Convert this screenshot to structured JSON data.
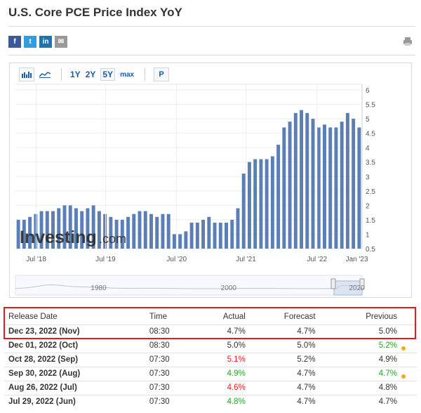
{
  "page_title": "U.S. Core PCE Price Index YoY",
  "share_icons": [
    {
      "name": "facebook-icon",
      "glyph": "f",
      "color": "#3b5998"
    },
    {
      "name": "twitter-icon",
      "glyph": "t",
      "color": "#2e9ee0"
    },
    {
      "name": "linkedin-icon",
      "glyph": "in",
      "color": "#1f73b1"
    },
    {
      "name": "email-icon",
      "glyph": "✉",
      "color": "#999999"
    }
  ],
  "toolbar": {
    "range_1y": "1Y",
    "range_2y": "2Y",
    "range_5y": "5Y",
    "range_max": "max",
    "p_label": "P"
  },
  "chart_data": {
    "type": "bar",
    "watermark": "Investing.com",
    "color": "#5b7fb4",
    "x_ticks": [
      "Jul '18",
      "Jul '19",
      "Jul '20",
      "Jul '21",
      "Jul '22",
      "Jan '23"
    ],
    "y_ticks": [
      0.5,
      1,
      1.5,
      2,
      2.5,
      3,
      3.5,
      4,
      4.5,
      5,
      5.5,
      6
    ],
    "ylim": [
      0.5,
      6
    ],
    "grid": true,
    "values": [
      1.5,
      1.5,
      1.6,
      1.7,
      1.8,
      1.8,
      1.8,
      1.9,
      2.0,
      2.0,
      1.9,
      1.8,
      1.9,
      2.0,
      1.8,
      1.7,
      1.6,
      1.5,
      1.5,
      1.6,
      1.7,
      1.8,
      1.8,
      1.7,
      1.6,
      1.7,
      1.7,
      1.0,
      1.0,
      1.1,
      1.4,
      1.4,
      1.5,
      1.6,
      1.4,
      1.4,
      1.4,
      1.5,
      1.9,
      3.1,
      3.5,
      3.6,
      3.6,
      3.6,
      3.7,
      4.1,
      4.7,
      4.9,
      5.2,
      5.3,
      5.2,
      5.0,
      4.7,
      4.8,
      4.7,
      4.7,
      4.9,
      5.2,
      5.0,
      4.7
    ],
    "navigator": {
      "labels": [
        "1980",
        "2000",
        "2020"
      ]
    }
  },
  "table": {
    "headers": [
      "Release Date",
      "Time",
      "Actual",
      "Forecast",
      "Previous"
    ],
    "rows": [
      {
        "date": "Dec 23, 2022 (Nov)",
        "time": "08:30",
        "actual": "4.7%",
        "forecast": "4.7%",
        "previous": "5.0%",
        "actual_color": "#333333",
        "previous_color": "#333333",
        "dot": false
      },
      {
        "date": "Dec 01, 2022 (Oct)",
        "time": "08:30",
        "actual": "5.0%",
        "forecast": "5.0%",
        "previous": "5.2%",
        "actual_color": "#333333",
        "previous_color": "#2ca02c",
        "dot": true
      },
      {
        "date": "Oct 28, 2022 (Sep)",
        "time": "07:30",
        "actual": "5.1%",
        "forecast": "5.2%",
        "previous": "4.9%",
        "actual_color": "#e02020",
        "previous_color": "#333333",
        "dot": false
      },
      {
        "date": "Sep 30, 2022 (Aug)",
        "time": "07:30",
        "actual": "4.9%",
        "forecast": "4.7%",
        "previous": "4.7%",
        "actual_color": "#2ca02c",
        "previous_color": "#2ca02c",
        "dot": true
      },
      {
        "date": "Aug 26, 2022 (Jul)",
        "time": "07:30",
        "actual": "4.6%",
        "forecast": "4.7%",
        "previous": "4.8%",
        "actual_color": "#e02020",
        "previous_color": "#333333",
        "dot": false
      },
      {
        "date": "Jul 29, 2022 (Jun)",
        "time": "07:30",
        "actual": "4.8%",
        "forecast": "4.7%",
        "previous": "4.7%",
        "actual_color": "#2ca02c",
        "previous_color": "#333333",
        "dot": false
      }
    ]
  }
}
